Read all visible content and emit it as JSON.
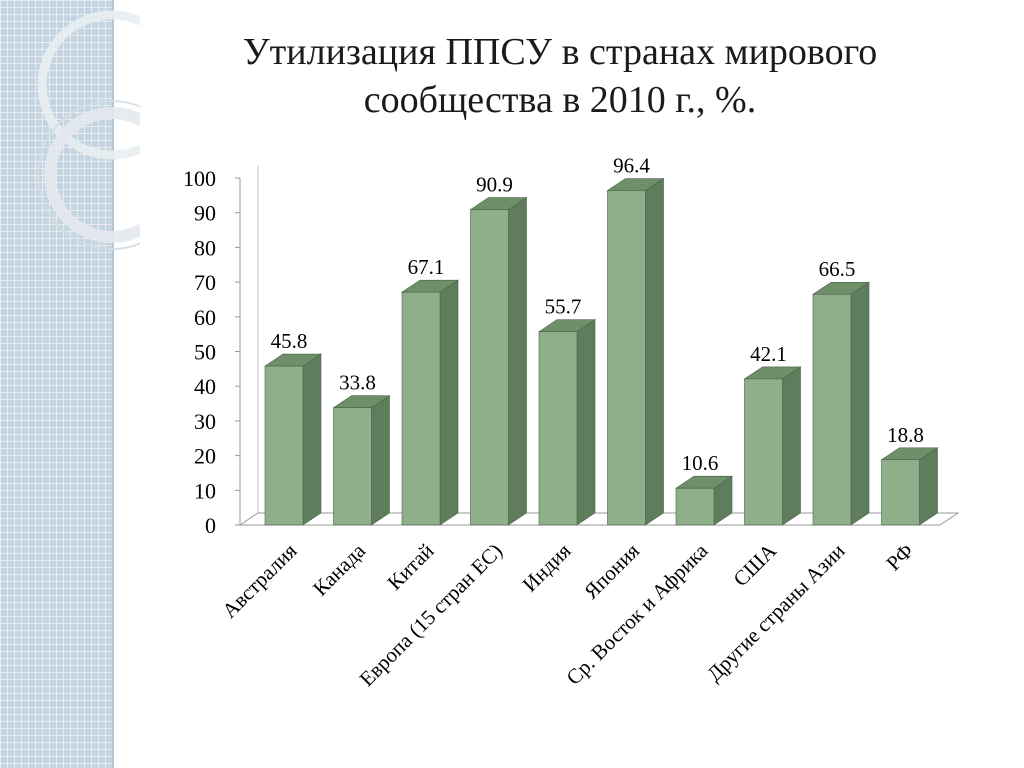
{
  "slide": {
    "title_line1": "Утилизация ППСУ в странах мирового",
    "title_line2": "сообщества в 2010 г., %."
  },
  "colors": {
    "bar_front": "#8faf8a",
    "bar_side": "#5f7d5c",
    "bar_top": "#6f8f6b",
    "sidebar": "#c4d4e0"
  },
  "chart_data": {
    "type": "bar",
    "title": "Утилизация ППСУ в странах мирового сообщества в 2010 г., %.",
    "categories": [
      "Австралия",
      "Канада",
      "Китай",
      "Европа (15 стран ЕС)",
      "Индия",
      "Япония",
      "Ср. Восток и Африка",
      "США",
      "Другие страны Азии",
      "РФ"
    ],
    "values": [
      45.8,
      33.8,
      67.1,
      90.9,
      55.7,
      96.4,
      10.6,
      42.1,
      66.5,
      18.8
    ],
    "ylim": [
      0,
      100
    ],
    "yticks": [
      0,
      10,
      20,
      30,
      40,
      50,
      60,
      70,
      80,
      90,
      100
    ],
    "data_labels": [
      "45.8",
      "33.8",
      "67.1",
      "90.9",
      "55.7",
      "96.4",
      "10.6",
      "42.1",
      "66.5",
      "18.8"
    ],
    "grid": false,
    "style": "3d-column"
  }
}
